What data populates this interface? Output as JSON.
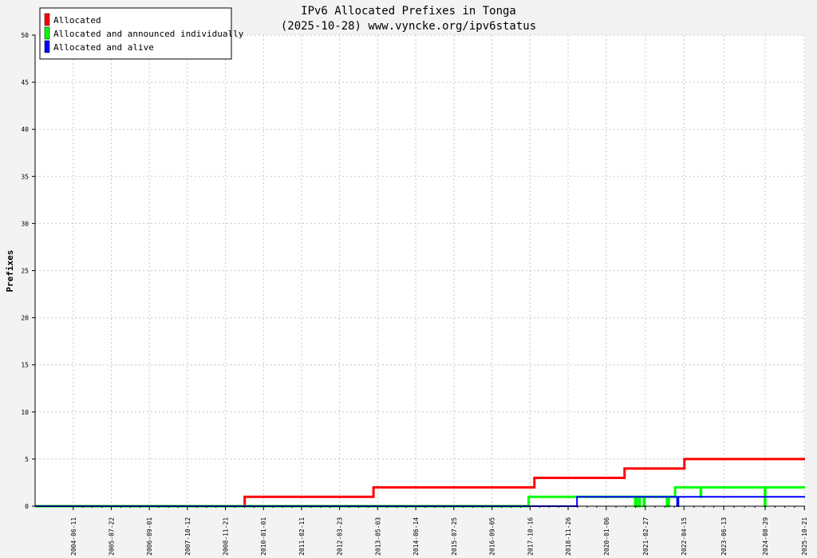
{
  "chart_data": {
    "type": "line",
    "title": "IPv6 Allocated Prefixes in Tonga",
    "subtitle": "(2025-10-28) www.vyncke.org/ipv6status",
    "ylabel": "Prefixes",
    "xlabel": "",
    "ylim": [
      0,
      50
    ],
    "yticks": [
      0,
      5,
      10,
      15,
      20,
      25,
      30,
      35,
      40,
      45,
      50
    ],
    "xlim": [
      "2003-05-01",
      "2025-10-28"
    ],
    "xticks": [
      "2004-06-11",
      "2005-07-22",
      "2006-09-01",
      "2007-10-12",
      "2008-11-21",
      "2010-01-01",
      "2011-02-11",
      "2012-03-23",
      "2013-05-03",
      "2014-06-14",
      "2015-07-25",
      "2016-09-05",
      "2017-10-16",
      "2018-11-26",
      "2020-01-06",
      "2021-02-27",
      "2022-04-15",
      "2023-06-13",
      "2024-08-29",
      "2025-10-21"
    ],
    "grid": true,
    "legend_position": "top-left",
    "series": [
      {
        "name": "Allocated",
        "color": "#ff0000",
        "points": [
          [
            "2003-05-01",
            0
          ],
          [
            "2009-06-15",
            0
          ],
          [
            "2009-06-15",
            1
          ],
          [
            "2013-03-20",
            1
          ],
          [
            "2013-03-20",
            2
          ],
          [
            "2017-12-01",
            2
          ],
          [
            "2017-12-01",
            3
          ],
          [
            "2020-07-20",
            3
          ],
          [
            "2020-07-20",
            4
          ],
          [
            "2022-04-20",
            4
          ],
          [
            "2022-04-20",
            5
          ],
          [
            "2025-10-28",
            5
          ]
        ]
      },
      {
        "name": "Allocated and announced individually",
        "color": "#00ff00",
        "points": [
          [
            "2003-05-01",
            0
          ],
          [
            "2017-10-01",
            0
          ],
          [
            "2017-10-01",
            1
          ],
          [
            "2020-11-10",
            1
          ],
          [
            "2020-11-10",
            0
          ],
          [
            "2020-11-22",
            0
          ],
          [
            "2020-11-22",
            1
          ],
          [
            "2020-12-20",
            1
          ],
          [
            "2020-12-20",
            0
          ],
          [
            "2020-12-30",
            0
          ],
          [
            "2020-12-30",
            1
          ],
          [
            "2021-02-10",
            1
          ],
          [
            "2021-02-10",
            0
          ],
          [
            "2021-02-20",
            0
          ],
          [
            "2021-02-20",
            1
          ],
          [
            "2021-10-15",
            1
          ],
          [
            "2021-10-15",
            0
          ],
          [
            "2021-11-05",
            0
          ],
          [
            "2021-11-05",
            1
          ],
          [
            "2022-01-10",
            1
          ],
          [
            "2022-01-10",
            2
          ],
          [
            "2022-10-10",
            2
          ],
          [
            "2022-10-10",
            1
          ],
          [
            "2022-10-15",
            1
          ],
          [
            "2022-10-15",
            2
          ],
          [
            "2024-08-25",
            2
          ],
          [
            "2024-08-25",
            0
          ],
          [
            "2024-08-30",
            0
          ],
          [
            "2024-08-30",
            2
          ],
          [
            "2025-10-28",
            2
          ]
        ]
      },
      {
        "name": "Allocated and alive",
        "color": "#0000ff",
        "points": [
          [
            "2003-05-01",
            0
          ],
          [
            "2019-03-01",
            0
          ],
          [
            "2019-03-01",
            1
          ],
          [
            "2022-02-01",
            1
          ],
          [
            "2022-02-01",
            0
          ],
          [
            "2022-02-15",
            0
          ],
          [
            "2022-02-15",
            1
          ],
          [
            "2025-10-28",
            1
          ]
        ]
      }
    ]
  }
}
